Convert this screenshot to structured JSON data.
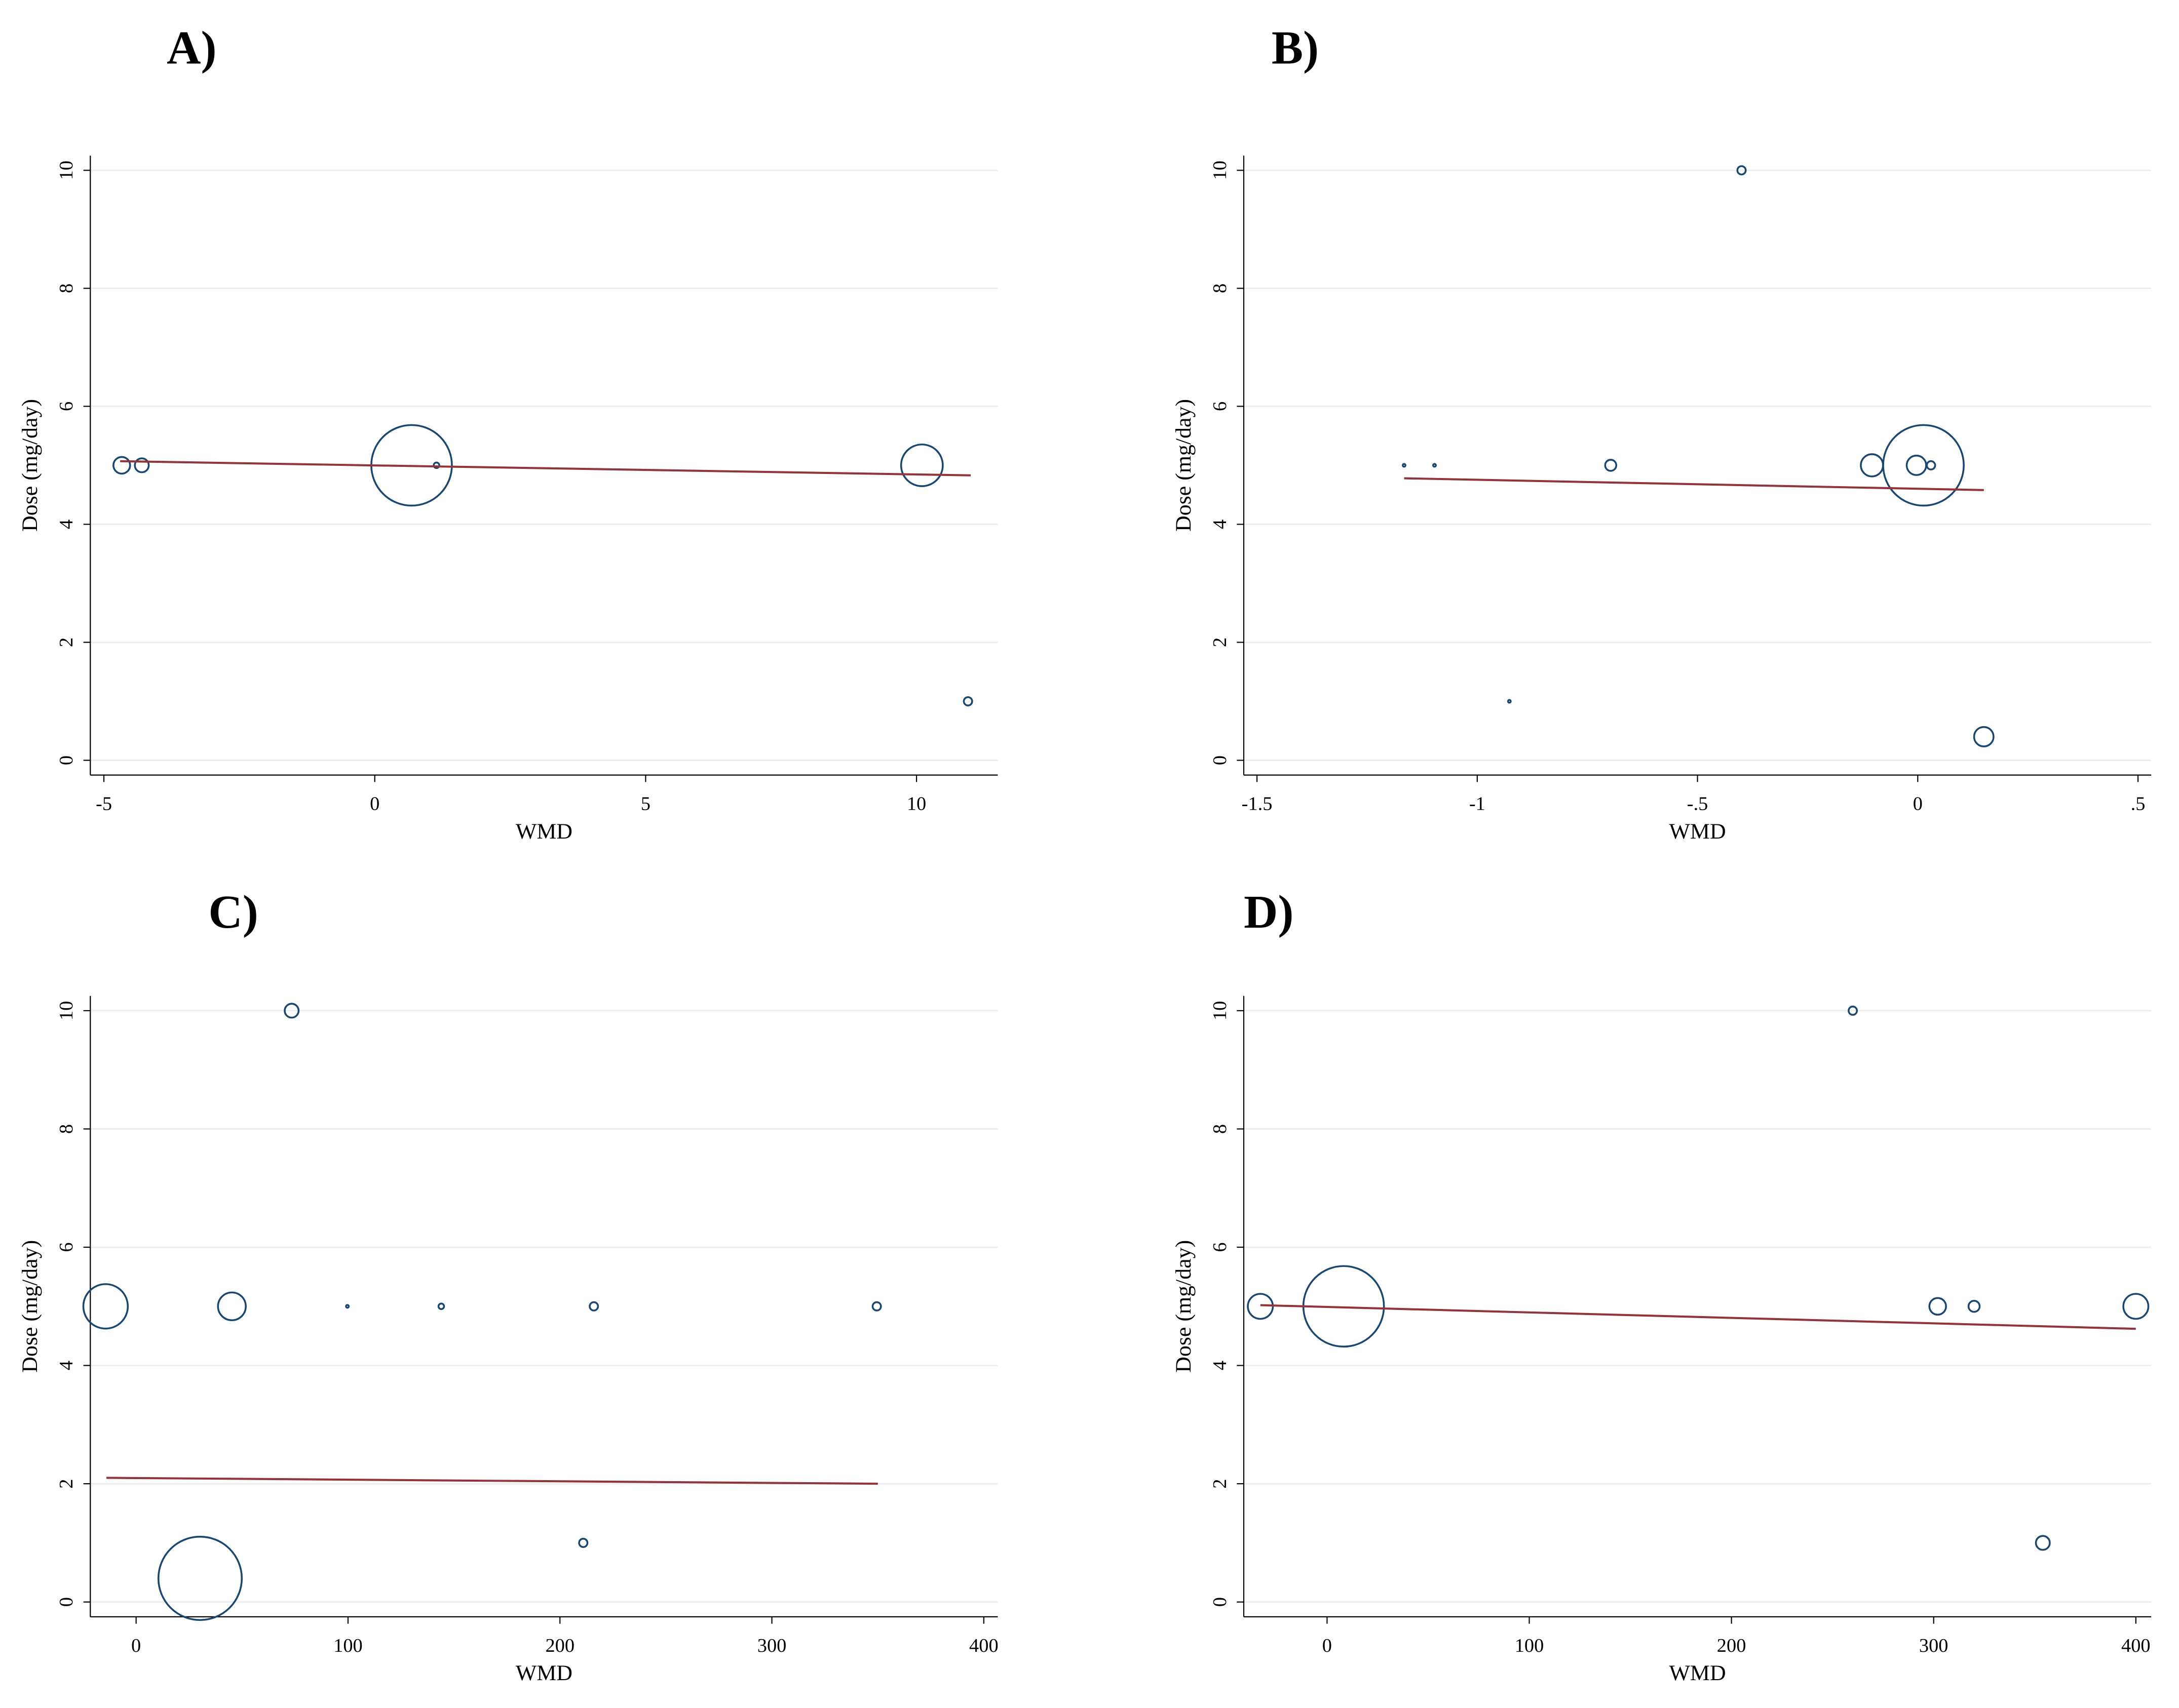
{
  "chart_data": [
    {
      "type": "scatter",
      "title": "A)",
      "xlabel": "WMD",
      "ylabel": "Dose (mg/day)",
      "xlim": [
        -5.25,
        11.5
      ],
      "ylim": [
        -0.25,
        10.25
      ],
      "xticks": [
        -5,
        0,
        5,
        10
      ],
      "yticks": [
        0,
        2,
        4,
        6,
        8,
        10
      ],
      "grid": true,
      "marker_color": "#1a476f",
      "fit_color": "#90353b",
      "x": [
        -4.67,
        -4.3,
        0.68,
        1.14,
        10.1,
        10.95
      ],
      "y": [
        5,
        5,
        5,
        5,
        5,
        1
      ],
      "weights": [
        36,
        25,
        841,
        4,
        225,
        9
      ],
      "fit": {
        "x": [
          -4.7,
          11
        ],
        "y": [
          5.07,
          4.83
        ]
      }
    },
    {
      "type": "scatter",
      "title": "B)",
      "xlabel": "WMD",
      "ylabel": "Dose (mg/day)",
      "xlim": [
        -1.53,
        0.53
      ],
      "ylim": [
        -0.25,
        10.25
      ],
      "xticks": [
        -1.5,
        -1,
        {
          "value": -0.5,
          "label": "-.5"
        },
        0,
        {
          "value": 0.5,
          "label": ".5"
        }
      ],
      "yticks": [
        0,
        2,
        4,
        6,
        8,
        10
      ],
      "grid": true,
      "marker_color": "#1a476f",
      "fit_color": "#90353b",
      "x": [
        -1.166,
        -1.097,
        -0.927,
        -0.697,
        -0.4,
        -0.104,
        -0.003,
        0.013,
        0.03,
        0.15
      ],
      "y": [
        5,
        5,
        1,
        5,
        10,
        5,
        5,
        5,
        5,
        0.4
      ],
      "weights": [
        1,
        1,
        1,
        16,
        9,
        64,
        49,
        841,
        9,
        49
      ],
      "fit": {
        "x": [
          -1.166,
          0.15
        ],
        "y": [
          4.78,
          4.58
        ]
      }
    },
    {
      "type": "scatter",
      "title": "C)",
      "xlabel": "WMD",
      "ylabel": "Dose (mg/day)",
      "xlim": [
        -21.6,
        406.6
      ],
      "ylim": [
        -0.25,
        10.25
      ],
      "xticks": [
        0,
        100,
        200,
        300,
        400
      ],
      "yticks": [
        0,
        2,
        4,
        6,
        8,
        10
      ],
      "grid": true,
      "marker_color": "#1a476f",
      "fit_color": "#90353b",
      "x": [
        -14.4,
        45.2,
        73.4,
        99.7,
        144,
        216,
        349.5,
        30.2,
        211
      ],
      "y": [
        5,
        5,
        10,
        5,
        5,
        5,
        5,
        0.4,
        1
      ],
      "weights": [
        256,
        100,
        25,
        1,
        4,
        9,
        9,
        900,
        9
      ],
      "fit": {
        "x": [
          -14,
          350
        ],
        "y": [
          2.1,
          2.0
        ]
      }
    },
    {
      "type": "scatter",
      "title": "D)",
      "xlabel": "WMD",
      "ylabel": "Dose (mg/day)",
      "xlim": [
        -41.2,
        407.6
      ],
      "ylim": [
        -0.25,
        10.25
      ],
      "xticks": [
        0,
        100,
        200,
        300,
        400
      ],
      "yticks": [
        0,
        2,
        4,
        6,
        8,
        10
      ],
      "grid": true,
      "marker_color": "#1a476f",
      "fit_color": "#90353b",
      "x": [
        -33,
        8.2,
        260,
        302,
        320,
        354,
        400
      ],
      "y": [
        5,
        5,
        10,
        5,
        5,
        1,
        5
      ],
      "weights": [
        81,
        841,
        9,
        36,
        16,
        25,
        81
      ],
      "fit": {
        "x": [
          -33,
          400
        ],
        "y": [
          5.02,
          4.62
        ]
      }
    }
  ]
}
